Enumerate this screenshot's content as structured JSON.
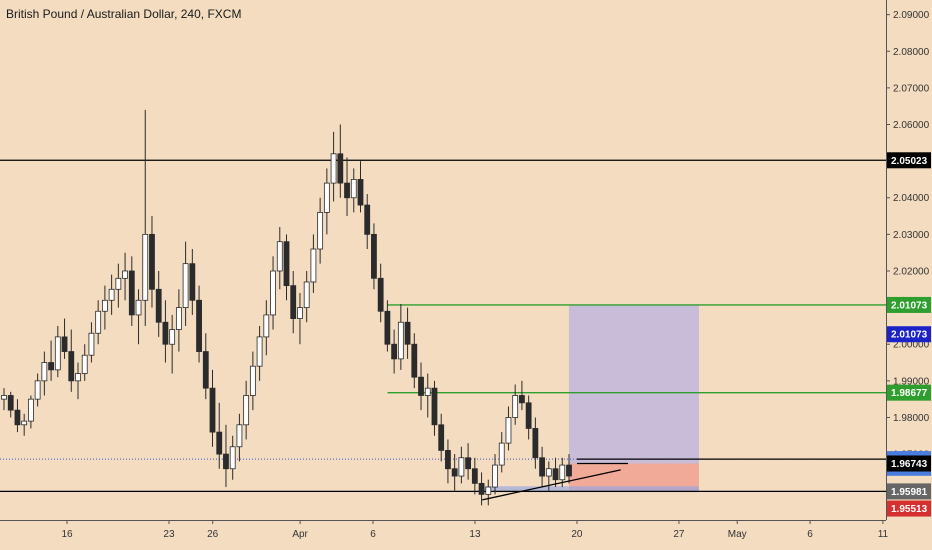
{
  "chart_data": {
    "type": "candlestick",
    "title": "British Pound / Australian Dollar, 240, FXCM",
    "y_axis": {
      "range": [
        1.952,
        2.094
      ],
      "ticks": [
        "2.09000",
        "2.08000",
        "2.07000",
        "2.06000",
        "2.05000",
        "2.04000",
        "2.03000",
        "2.02000",
        "2.01000",
        "2.00000",
        "1.99000",
        "1.98000",
        "1.97000",
        "1.96000"
      ]
    },
    "x_axis": {
      "ticks": [
        {
          "label": "16",
          "day": 0
        },
        {
          "label": "23",
          "day": 7
        },
        {
          "label": "26",
          "day": 10
        },
        {
          "label": "Apr",
          "day": 16
        },
        {
          "label": "6",
          "day": 21
        },
        {
          "label": "13",
          "day": 28
        },
        {
          "label": "20",
          "day": 35
        },
        {
          "label": "27",
          "day": 42
        },
        {
          "label": "May",
          "day": 46
        },
        {
          "label": "6",
          "day": 51
        },
        {
          "label": "11",
          "day": 56
        }
      ]
    },
    "candles": [
      [
        1.985,
        1.988,
        1.982,
        1.986
      ],
      [
        1.986,
        1.987,
        1.98,
        1.982
      ],
      [
        1.982,
        1.985,
        1.976,
        1.978
      ],
      [
        1.978,
        1.981,
        1.975,
        1.979
      ],
      [
        1.979,
        1.986,
        1.977,
        1.985
      ],
      [
        1.985,
        1.992,
        1.983,
        1.99
      ],
      [
        1.99,
        1.998,
        1.986,
        1.995
      ],
      [
        1.995,
        2.001,
        1.99,
        1.993
      ],
      [
        1.993,
        2.005,
        1.991,
        2.002
      ],
      [
        2.002,
        2.007,
        1.996,
        1.998
      ],
      [
        1.998,
        2.004,
        1.987,
        1.99
      ],
      [
        1.99,
        1.995,
        1.985,
        1.992
      ],
      [
        1.992,
        2.0,
        1.99,
        1.997
      ],
      [
        1.997,
        2.006,
        1.995,
        2.003
      ],
      [
        2.003,
        2.012,
        2.0,
        2.009
      ],
      [
        2.009,
        2.016,
        2.004,
        2.012
      ],
      [
        2.012,
        2.019,
        2.008,
        2.015
      ],
      [
        2.015,
        2.022,
        2.01,
        2.018
      ],
      [
        2.018,
        2.025,
        2.012,
        2.02
      ],
      [
        2.02,
        2.024,
        2.005,
        2.008
      ],
      [
        2.008,
        2.015,
        2.0,
        2.012
      ],
      [
        2.012,
        2.064,
        2.005,
        2.03
      ],
      [
        2.03,
        2.035,
        2.01,
        2.015
      ],
      [
        2.015,
        2.02,
        2.002,
        2.006
      ],
      [
        2.006,
        2.012,
        1.995,
        2.0
      ],
      [
        2.0,
        2.008,
        1.992,
        2.004
      ],
      [
        2.004,
        2.015,
        1.998,
        2.01
      ],
      [
        2.01,
        2.028,
        2.005,
        2.022
      ],
      [
        2.022,
        2.026,
        2.008,
        2.012
      ],
      [
        2.012,
        2.016,
        1.995,
        1.998
      ],
      [
        1.998,
        2.003,
        1.985,
        1.988
      ],
      [
        1.988,
        1.993,
        1.972,
        1.976
      ],
      [
        1.976,
        1.984,
        1.966,
        1.97
      ],
      [
        1.97,
        1.978,
        1.961,
        1.966
      ],
      [
        1.966,
        1.975,
        1.963,
        1.972
      ],
      [
        1.972,
        1.981,
        1.968,
        1.978
      ],
      [
        1.978,
        1.99,
        1.974,
        1.986
      ],
      [
        1.986,
        1.998,
        1.982,
        1.994
      ],
      [
        1.994,
        2.005,
        1.99,
        2.002
      ],
      [
        2.002,
        2.012,
        1.997,
        2.008
      ],
      [
        2.008,
        2.024,
        2.004,
        2.02
      ],
      [
        2.02,
        2.032,
        2.015,
        2.028
      ],
      [
        2.028,
        2.03,
        2.012,
        2.016
      ],
      [
        2.016,
        2.02,
        2.003,
        2.007
      ],
      [
        2.007,
        2.014,
        2.0,
        2.01
      ],
      [
        2.01,
        2.02,
        2.006,
        2.017
      ],
      [
        2.017,
        2.03,
        2.014,
        2.026
      ],
      [
        2.026,
        2.04,
        2.022,
        2.036
      ],
      [
        2.036,
        2.048,
        2.03,
        2.044
      ],
      [
        2.044,
        2.058,
        2.039,
        2.052
      ],
      [
        2.052,
        2.06,
        2.04,
        2.044
      ],
      [
        2.044,
        2.051,
        2.035,
        2.04
      ],
      [
        2.04,
        2.048,
        2.036,
        2.045
      ],
      [
        2.045,
        2.05,
        2.036,
        2.038
      ],
      [
        2.038,
        2.041,
        2.026,
        2.03
      ],
      [
        2.03,
        2.033,
        2.015,
        2.018
      ],
      [
        2.018,
        2.022,
        2.006,
        2.009
      ],
      [
        2.009,
        2.012,
        1.998,
        2.0
      ],
      [
        2.0,
        2.004,
        1.992,
        1.996
      ],
      [
        1.996,
        2.011,
        1.993,
        2.006
      ],
      [
        2.006,
        2.01,
        1.996,
        2.0
      ],
      [
        2.0,
        2.003,
        1.988,
        1.991
      ],
      [
        1.991,
        1.995,
        1.982,
        1.986
      ],
      [
        1.986,
        1.992,
        1.98,
        1.988
      ],
      [
        1.988,
        1.99,
        1.975,
        1.978
      ],
      [
        1.978,
        1.981,
        1.968,
        1.971
      ],
      [
        1.971,
        1.974,
        1.962,
        1.966
      ],
      [
        1.966,
        1.97,
        1.96,
        1.964
      ],
      [
        1.964,
        1.972,
        1.962,
        1.969
      ],
      [
        1.969,
        1.973,
        1.963,
        1.966
      ],
      [
        1.966,
        1.969,
        1.959,
        1.962
      ],
      [
        1.962,
        1.965,
        1.956,
        1.959
      ],
      [
        1.959,
        1.963,
        1.956,
        1.961
      ],
      [
        1.961,
        1.97,
        1.959,
        1.967
      ],
      [
        1.967,
        1.976,
        1.965,
        1.973
      ],
      [
        1.973,
        1.983,
        1.971,
        1.98
      ],
      [
        1.98,
        1.989,
        1.978,
        1.986
      ],
      [
        1.986,
        1.99,
        1.982,
        1.984
      ],
      [
        1.984,
        1.986,
        1.974,
        1.977
      ],
      [
        1.977,
        1.98,
        1.966,
        1.969
      ],
      [
        1.969,
        1.972,
        1.961,
        1.964
      ],
      [
        1.964,
        1.968,
        1.96,
        1.966
      ],
      [
        1.966,
        1.969,
        1.961,
        1.963
      ],
      [
        1.963,
        1.969,
        1.961,
        1.967
      ],
      [
        1.967,
        1.97,
        1.962,
        1.964
      ]
    ],
    "horizontal_lines": [
      {
        "price": 2.05023,
        "color": "#000000",
        "label": "2.05023"
      },
      {
        "price": 2.01073,
        "color": "#2e9e2e",
        "label": "2.01073",
        "x_from_day": 22,
        "x_to_day": null
      },
      {
        "price": 1.98677,
        "color": "#2e9e2e",
        "label": "1.98677",
        "x_from_day": 22,
        "x_to_day": null
      },
      {
        "price": 1.96863,
        "color": "#000000",
        "label": "1.96863",
        "x_from_day": 35,
        "x_to_day": null
      },
      {
        "price": 1.95981,
        "color": "#000000",
        "label": "1.95981"
      }
    ],
    "dotted_line": {
      "price": 1.96863,
      "color": "#3b52c8"
    },
    "price_tags": [
      {
        "price": 2.05023,
        "text": "2.05023",
        "bg": "#000000",
        "fg": "#ffffff"
      },
      {
        "price": 2.01073,
        "text": "2.01073",
        "bg": "#2e9e2e",
        "fg": "#ffffff"
      },
      {
        "price": 2.00273,
        "text": "2.01073",
        "bg": "#1a22c8",
        "fg": "#ffffff"
      },
      {
        "price": 1.98677,
        "text": "1.98677",
        "bg": "#2e9e2e",
        "fg": "#ffffff"
      },
      {
        "price": 1.96863,
        "text": "1.96863",
        "bg": "#4a7de0",
        "fg": "#ffffff"
      },
      {
        "price": 1.96625,
        "text": "01:04:31",
        "bg": "#4a7de0",
        "fg": "#ffffff"
      },
      {
        "price": 1.96743,
        "text": "1.96743",
        "bg": "#000000",
        "fg": "#ffffff"
      },
      {
        "price": 1.95981,
        "text": "1.95981",
        "bg": "#666666",
        "fg": "#ffffff"
      },
      {
        "price": 1.95513,
        "text": "1.95513",
        "bg": "#d62f2f",
        "fg": "#ffffff"
      }
    ],
    "position_box": {
      "entry": 1.96743,
      "target": 2.01073,
      "stop": 1.95981,
      "start_day": 35,
      "end_day": 42,
      "profit_color": "#b9b1e0",
      "loss_color": "#f0a090"
    },
    "trendline": {
      "from": [
        28.5,
        1.9575
      ],
      "to": [
        38,
        1.9657
      ],
      "color": "#000000"
    }
  }
}
